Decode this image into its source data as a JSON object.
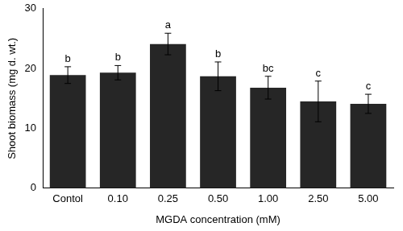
{
  "chart_data": {
    "type": "bar",
    "x_label": "MGDA concentration (mM)",
    "y_label": "Shoot biomass (mg d. wt.)",
    "categories": [
      "Contol",
      "0.10",
      "0.25",
      "0.50",
      "1.00",
      "2.50",
      "5.00"
    ],
    "values": [
      18.9,
      19.3,
      24.1,
      18.7,
      16.8,
      14.5,
      14.1
    ],
    "errors": [
      1.4,
      1.2,
      1.8,
      2.4,
      1.9,
      3.4,
      1.6
    ],
    "annotations": [
      "b",
      "b",
      "a",
      "b",
      "bc",
      "c",
      "c"
    ],
    "color": "#262626",
    "ylim": [
      0,
      30
    ],
    "yticks": [
      0,
      10,
      20,
      30
    ],
    "grid": false
  }
}
